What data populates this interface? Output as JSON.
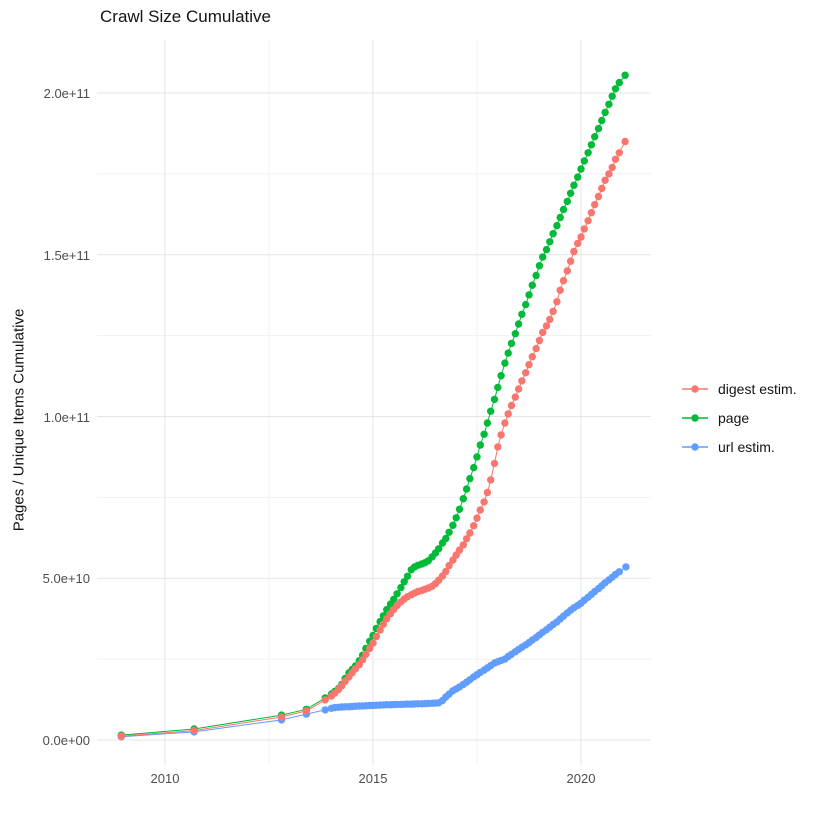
{
  "page": {
    "title": "Crawl Size Cumulative"
  },
  "chart_data": {
    "type": "line",
    "subtype": "line-with-points",
    "title": "Crawl Size Cumulative",
    "xlabel": "",
    "ylabel": "Pages / Unique Items Cumulative",
    "values_unit": "pages (values stored in billions, 1e9)",
    "grid": true,
    "legend_position": "right",
    "x_axis": {
      "tick_values": [
        2010,
        2015,
        2020
      ],
      "tick_labels": [
        "2010",
        "2015",
        "2020"
      ],
      "minor_tick_values": [
        2012.5,
        2017.5
      ],
      "range": [
        2008.4,
        2021.7
      ]
    },
    "y_axis": {
      "tick_values_e9": [
        0,
        50,
        100,
        150,
        200
      ],
      "tick_labels": [
        "0.0e+00",
        "5.0e+10",
        "1.0e+11",
        "1.5e+11",
        "2.0e+11"
      ],
      "minor_tick_values_e9": [
        25,
        75,
        125,
        175
      ],
      "range_e9": [
        -7.7,
        216.4
      ]
    },
    "series": [
      {
        "name": "digest estim.",
        "color": "#F8766D",
        "points": [
          [
            2008.95,
            1.2
          ],
          [
            2010.7,
            2.9
          ],
          [
            2012.8,
            7.1
          ],
          [
            2013.4,
            9.0
          ],
          [
            2013.85,
            12.4
          ],
          [
            2014.0,
            13.6
          ],
          [
            2014.08,
            14.5
          ],
          [
            2014.17,
            15.6
          ],
          [
            2014.25,
            16.8
          ],
          [
            2014.33,
            18.2
          ],
          [
            2014.42,
            19.5
          ],
          [
            2014.5,
            20.8
          ],
          [
            2014.58,
            22.0
          ],
          [
            2014.67,
            23.3
          ],
          [
            2014.75,
            24.8
          ],
          [
            2014.83,
            26.5
          ],
          [
            2014.92,
            28.3
          ],
          [
            2015.0,
            30.0
          ],
          [
            2015.08,
            32.0
          ],
          [
            2015.17,
            34.0
          ],
          [
            2015.25,
            35.8
          ],
          [
            2015.33,
            37.5
          ],
          [
            2015.42,
            39.0
          ],
          [
            2015.5,
            40.4
          ],
          [
            2015.58,
            41.6
          ],
          [
            2015.67,
            42.7
          ],
          [
            2015.75,
            43.6
          ],
          [
            2015.83,
            44.3
          ],
          [
            2015.92,
            44.9
          ],
          [
            2016.0,
            45.4
          ],
          [
            2016.08,
            45.9
          ],
          [
            2016.17,
            46.2
          ],
          [
            2016.25,
            46.6
          ],
          [
            2016.33,
            47.0
          ],
          [
            2016.42,
            47.5
          ],
          [
            2016.5,
            48.3
          ],
          [
            2016.58,
            49.4
          ],
          [
            2016.67,
            50.7
          ],
          [
            2016.75,
            52.1
          ],
          [
            2016.83,
            53.9
          ],
          [
            2016.92,
            55.6
          ],
          [
            2017.0,
            57.2
          ],
          [
            2017.08,
            58.7
          ],
          [
            2017.17,
            60.3
          ],
          [
            2017.25,
            62.2
          ],
          [
            2017.33,
            64.0
          ],
          [
            2017.42,
            66.2
          ],
          [
            2017.5,
            68.6
          ],
          [
            2017.58,
            71.1
          ],
          [
            2017.67,
            73.6
          ],
          [
            2017.75,
            76.5
          ],
          [
            2017.83,
            80.4
          ],
          [
            2017.92,
            85.5
          ],
          [
            2018.0,
            90.6
          ],
          [
            2018.08,
            94.3
          ],
          [
            2018.17,
            98.0
          ],
          [
            2018.25,
            100.8
          ],
          [
            2018.33,
            103.4
          ],
          [
            2018.42,
            106.0
          ],
          [
            2018.5,
            108.5
          ],
          [
            2018.58,
            111.0
          ],
          [
            2018.67,
            113.5
          ],
          [
            2018.75,
            116.0
          ],
          [
            2018.83,
            118.5
          ],
          [
            2018.92,
            121.0
          ],
          [
            2019.0,
            123.5
          ],
          [
            2019.08,
            126.0
          ],
          [
            2019.17,
            128.0
          ],
          [
            2019.25,
            130.0
          ],
          [
            2019.33,
            132.5
          ],
          [
            2019.42,
            135.5
          ],
          [
            2019.5,
            139.0
          ],
          [
            2019.58,
            142.0
          ],
          [
            2019.67,
            145.0
          ],
          [
            2019.75,
            148.0
          ],
          [
            2019.83,
            151.0
          ],
          [
            2019.92,
            153.5
          ],
          [
            2020.0,
            155.5
          ],
          [
            2020.08,
            158.0
          ],
          [
            2020.17,
            160.5
          ],
          [
            2020.25,
            163.0
          ],
          [
            2020.33,
            165.5
          ],
          [
            2020.42,
            168.0
          ],
          [
            2020.5,
            170.5
          ],
          [
            2020.58,
            173.0
          ],
          [
            2020.67,
            175.0
          ],
          [
            2020.75,
            177.0
          ],
          [
            2020.83,
            179.5
          ],
          [
            2020.92,
            181.5
          ],
          [
            2021.06,
            185.0
          ]
        ]
      },
      {
        "name": "page",
        "color": "#00BA38",
        "points": [
          [
            2008.95,
            1.5
          ],
          [
            2010.7,
            3.4
          ],
          [
            2012.8,
            7.7
          ],
          [
            2013.4,
            9.5
          ],
          [
            2013.85,
            13.0
          ],
          [
            2014.0,
            14.2
          ],
          [
            2014.08,
            15.0
          ],
          [
            2014.17,
            15.9
          ],
          [
            2014.25,
            17.2
          ],
          [
            2014.33,
            19.0
          ],
          [
            2014.42,
            20.7
          ],
          [
            2014.5,
            21.8
          ],
          [
            2014.58,
            22.9
          ],
          [
            2014.67,
            24.5
          ],
          [
            2014.75,
            26.2
          ],
          [
            2014.83,
            28.3
          ],
          [
            2014.92,
            30.5
          ],
          [
            2015.0,
            32.3
          ],
          [
            2015.08,
            34.5
          ],
          [
            2015.17,
            36.6
          ],
          [
            2015.25,
            38.4
          ],
          [
            2015.33,
            40.3
          ],
          [
            2015.42,
            42.0
          ],
          [
            2015.5,
            43.5
          ],
          [
            2015.58,
            45.2
          ],
          [
            2015.67,
            47.1
          ],
          [
            2015.75,
            48.9
          ],
          [
            2015.83,
            50.6
          ],
          [
            2015.92,
            52.6
          ],
          [
            2016.0,
            53.5
          ],
          [
            2016.08,
            54.0
          ],
          [
            2016.17,
            54.4
          ],
          [
            2016.25,
            54.8
          ],
          [
            2016.33,
            55.4
          ],
          [
            2016.42,
            56.6
          ],
          [
            2016.5,
            57.8
          ],
          [
            2016.58,
            59.1
          ],
          [
            2016.67,
            60.9
          ],
          [
            2016.75,
            62.3
          ],
          [
            2016.83,
            64.2
          ],
          [
            2016.92,
            66.4
          ],
          [
            2017.0,
            68.7
          ],
          [
            2017.08,
            71.3
          ],
          [
            2017.17,
            74.6
          ],
          [
            2017.25,
            77.6
          ],
          [
            2017.33,
            80.8
          ],
          [
            2017.42,
            84.2
          ],
          [
            2017.5,
            87.5
          ],
          [
            2017.58,
            91.2
          ],
          [
            2017.67,
            94.5
          ],
          [
            2017.75,
            98.0
          ],
          [
            2017.83,
            101.6
          ],
          [
            2017.92,
            105.3
          ],
          [
            2018.0,
            109.0
          ],
          [
            2018.08,
            112.6
          ],
          [
            2018.17,
            116.5
          ],
          [
            2018.25,
            119.6
          ],
          [
            2018.33,
            122.6
          ],
          [
            2018.42,
            125.6
          ],
          [
            2018.5,
            128.6
          ],
          [
            2018.58,
            131.6
          ],
          [
            2018.67,
            134.6
          ],
          [
            2018.75,
            137.6
          ],
          [
            2018.83,
            140.6
          ],
          [
            2018.92,
            143.6
          ],
          [
            2019.0,
            146.6
          ],
          [
            2019.08,
            149.3
          ],
          [
            2019.17,
            151.6
          ],
          [
            2019.25,
            154.0
          ],
          [
            2019.33,
            156.5
          ],
          [
            2019.42,
            159.0
          ],
          [
            2019.5,
            161.5
          ],
          [
            2019.58,
            164.0
          ],
          [
            2019.67,
            166.5
          ],
          [
            2019.75,
            169.0
          ],
          [
            2019.83,
            171.5
          ],
          [
            2019.92,
            174.0
          ],
          [
            2020.0,
            176.5
          ],
          [
            2020.08,
            179.0
          ],
          [
            2020.17,
            181.5
          ],
          [
            2020.25,
            184.0
          ],
          [
            2020.33,
            186.5
          ],
          [
            2020.42,
            189.0
          ],
          [
            2020.5,
            191.5
          ],
          [
            2020.58,
            194.0
          ],
          [
            2020.67,
            196.5
          ],
          [
            2020.75,
            199.0
          ],
          [
            2020.83,
            201.3
          ],
          [
            2020.92,
            203.2
          ],
          [
            2021.06,
            205.5
          ]
        ]
      },
      {
        "name": "url estim.",
        "color": "#619CFF",
        "points": [
          [
            2008.95,
            1.0
          ],
          [
            2010.7,
            2.5
          ],
          [
            2012.8,
            6.2
          ],
          [
            2013.4,
            8.0
          ],
          [
            2013.85,
            9.3
          ],
          [
            2014.0,
            9.8
          ],
          [
            2014.08,
            10.0
          ],
          [
            2014.17,
            10.1
          ],
          [
            2014.25,
            10.2
          ],
          [
            2014.33,
            10.25
          ],
          [
            2014.42,
            10.3
          ],
          [
            2014.5,
            10.35
          ],
          [
            2014.58,
            10.45
          ],
          [
            2014.67,
            10.5
          ],
          [
            2014.75,
            10.55
          ],
          [
            2014.83,
            10.6
          ],
          [
            2014.92,
            10.65
          ],
          [
            2015.0,
            10.7
          ],
          [
            2015.08,
            10.75
          ],
          [
            2015.17,
            10.8
          ],
          [
            2015.25,
            10.85
          ],
          [
            2015.33,
            10.9
          ],
          [
            2015.42,
            10.92
          ],
          [
            2015.5,
            10.95
          ],
          [
            2015.58,
            11.0
          ],
          [
            2015.67,
            11.0
          ],
          [
            2015.75,
            11.05
          ],
          [
            2015.83,
            11.1
          ],
          [
            2015.92,
            11.1
          ],
          [
            2016.0,
            11.15
          ],
          [
            2016.08,
            11.2
          ],
          [
            2016.17,
            11.2
          ],
          [
            2016.25,
            11.25
          ],
          [
            2016.33,
            11.3
          ],
          [
            2016.42,
            11.35
          ],
          [
            2016.5,
            11.4
          ],
          [
            2016.58,
            11.5
          ],
          [
            2016.67,
            12.2
          ],
          [
            2016.75,
            13.3
          ],
          [
            2016.83,
            14.2
          ],
          [
            2016.92,
            15.2
          ],
          [
            2017.0,
            15.8
          ],
          [
            2017.08,
            16.4
          ],
          [
            2017.17,
            17.2
          ],
          [
            2017.25,
            17.9
          ],
          [
            2017.33,
            18.6
          ],
          [
            2017.42,
            19.5
          ],
          [
            2017.5,
            20.2
          ],
          [
            2017.58,
            20.9
          ],
          [
            2017.67,
            21.6
          ],
          [
            2017.75,
            22.3
          ],
          [
            2017.83,
            23.0
          ],
          [
            2017.92,
            23.8
          ],
          [
            2018.0,
            24.2
          ],
          [
            2018.08,
            24.6
          ],
          [
            2018.17,
            25.0
          ],
          [
            2018.25,
            25.8
          ],
          [
            2018.33,
            26.5
          ],
          [
            2018.42,
            27.3
          ],
          [
            2018.5,
            28.0
          ],
          [
            2018.58,
            28.7
          ],
          [
            2018.67,
            29.4
          ],
          [
            2018.75,
            30.1
          ],
          [
            2018.83,
            30.9
          ],
          [
            2018.92,
            31.7
          ],
          [
            2019.0,
            32.5
          ],
          [
            2019.08,
            33.3
          ],
          [
            2019.17,
            34.1
          ],
          [
            2019.25,
            34.9
          ],
          [
            2019.33,
            35.7
          ],
          [
            2019.42,
            36.5
          ],
          [
            2019.5,
            37.4
          ],
          [
            2019.58,
            38.3
          ],
          [
            2019.67,
            39.3
          ],
          [
            2019.75,
            40.1
          ],
          [
            2019.83,
            40.9
          ],
          [
            2019.92,
            41.6
          ],
          [
            2020.0,
            42.3
          ],
          [
            2020.08,
            43.2
          ],
          [
            2020.17,
            44.1
          ],
          [
            2020.25,
            45.0
          ],
          [
            2020.33,
            45.9
          ],
          [
            2020.42,
            46.8
          ],
          [
            2020.5,
            47.7
          ],
          [
            2020.58,
            48.6
          ],
          [
            2020.67,
            49.5
          ],
          [
            2020.75,
            50.3
          ],
          [
            2020.83,
            51.2
          ],
          [
            2020.92,
            52.0
          ],
          [
            2021.08,
            53.5
          ]
        ]
      }
    ],
    "style": {
      "grid_major_color": "#e4e4e4",
      "grid_minor_color": "#f1f1f1",
      "background": "#ffffff",
      "axis_text_color": "#4d4d4d",
      "title_color": "#141414",
      "point_radius": 3.7
    }
  }
}
